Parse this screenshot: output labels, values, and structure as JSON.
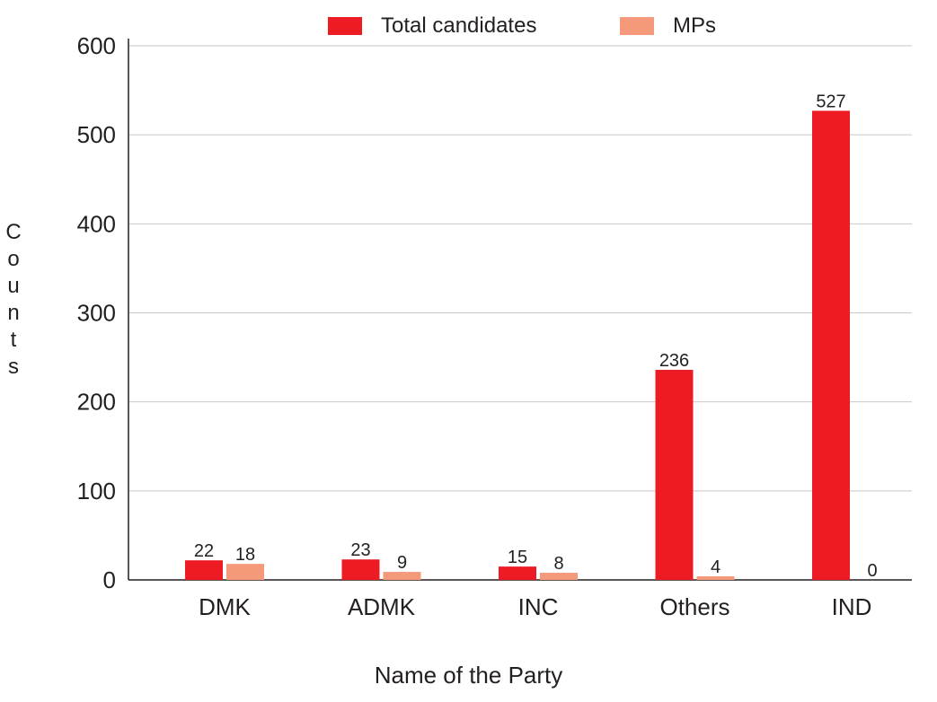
{
  "chart_data": {
    "type": "bar",
    "title": "",
    "xlabel": "Name of the Party",
    "ylabel": "Counts",
    "categories": [
      "DMK",
      "ADMK",
      "INC",
      "Others",
      "IND"
    ],
    "series": [
      {
        "name": "Total candidates",
        "color": "#ed1c24",
        "values": [
          22,
          23,
          15,
          236,
          527
        ]
      },
      {
        "name": "MPs",
        "color": "#f4997a",
        "values": [
          18,
          9,
          8,
          4,
          0
        ]
      }
    ],
    "ylim": [
      0,
      600
    ],
    "yticks": [
      0,
      100,
      200,
      300,
      400,
      500,
      600
    ],
    "grid": true,
    "legend_position": "top-center",
    "data_labels": true
  }
}
